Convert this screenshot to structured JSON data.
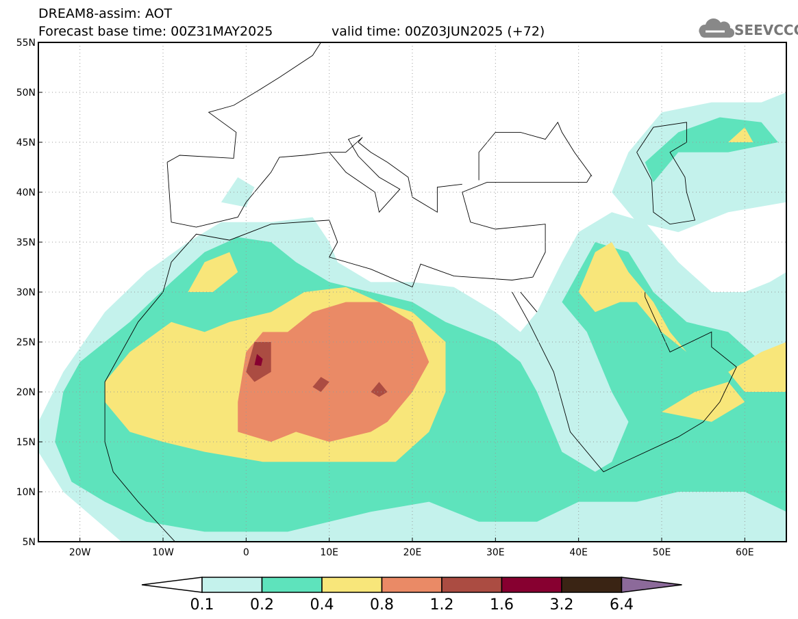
{
  "title": {
    "line1": "DREAM8-assim: AOT",
    "base_time": "Forecast base time: 00Z31MAY2025",
    "valid_time": "valid time: 00Z03JUN2025 (+72)"
  },
  "logo": {
    "text": "SEEVCCC",
    "icon": "cloud-icon"
  },
  "map": {
    "lon_range": [
      -25,
      65
    ],
    "lat_range": [
      5,
      55
    ],
    "lat_labels": [
      "55N",
      "50N",
      "45N",
      "40N",
      "35N",
      "30N",
      "25N",
      "20N",
      "15N",
      "10N",
      "5N"
    ],
    "lat_values": [
      55,
      50,
      45,
      40,
      35,
      30,
      25,
      20,
      15,
      10,
      5
    ],
    "lon_labels": [
      "20W",
      "10W",
      "0",
      "10E",
      "20E",
      "30E",
      "40E",
      "50E",
      "60E"
    ],
    "lon_values": [
      -20,
      -10,
      0,
      10,
      20,
      30,
      40,
      50,
      60
    ]
  },
  "colorbar": {
    "labels": [
      "0.1",
      "0.2",
      "0.4",
      "0.8",
      "1.2",
      "1.6",
      "3.2",
      "6.4"
    ],
    "colors": [
      "#ffffff",
      "#c4f2ec",
      "#5ee3bc",
      "#f8e67a",
      "#ea8a66",
      "#ab4c42",
      "#870030",
      "#3a2414",
      "#8c6a9a"
    ]
  }
}
